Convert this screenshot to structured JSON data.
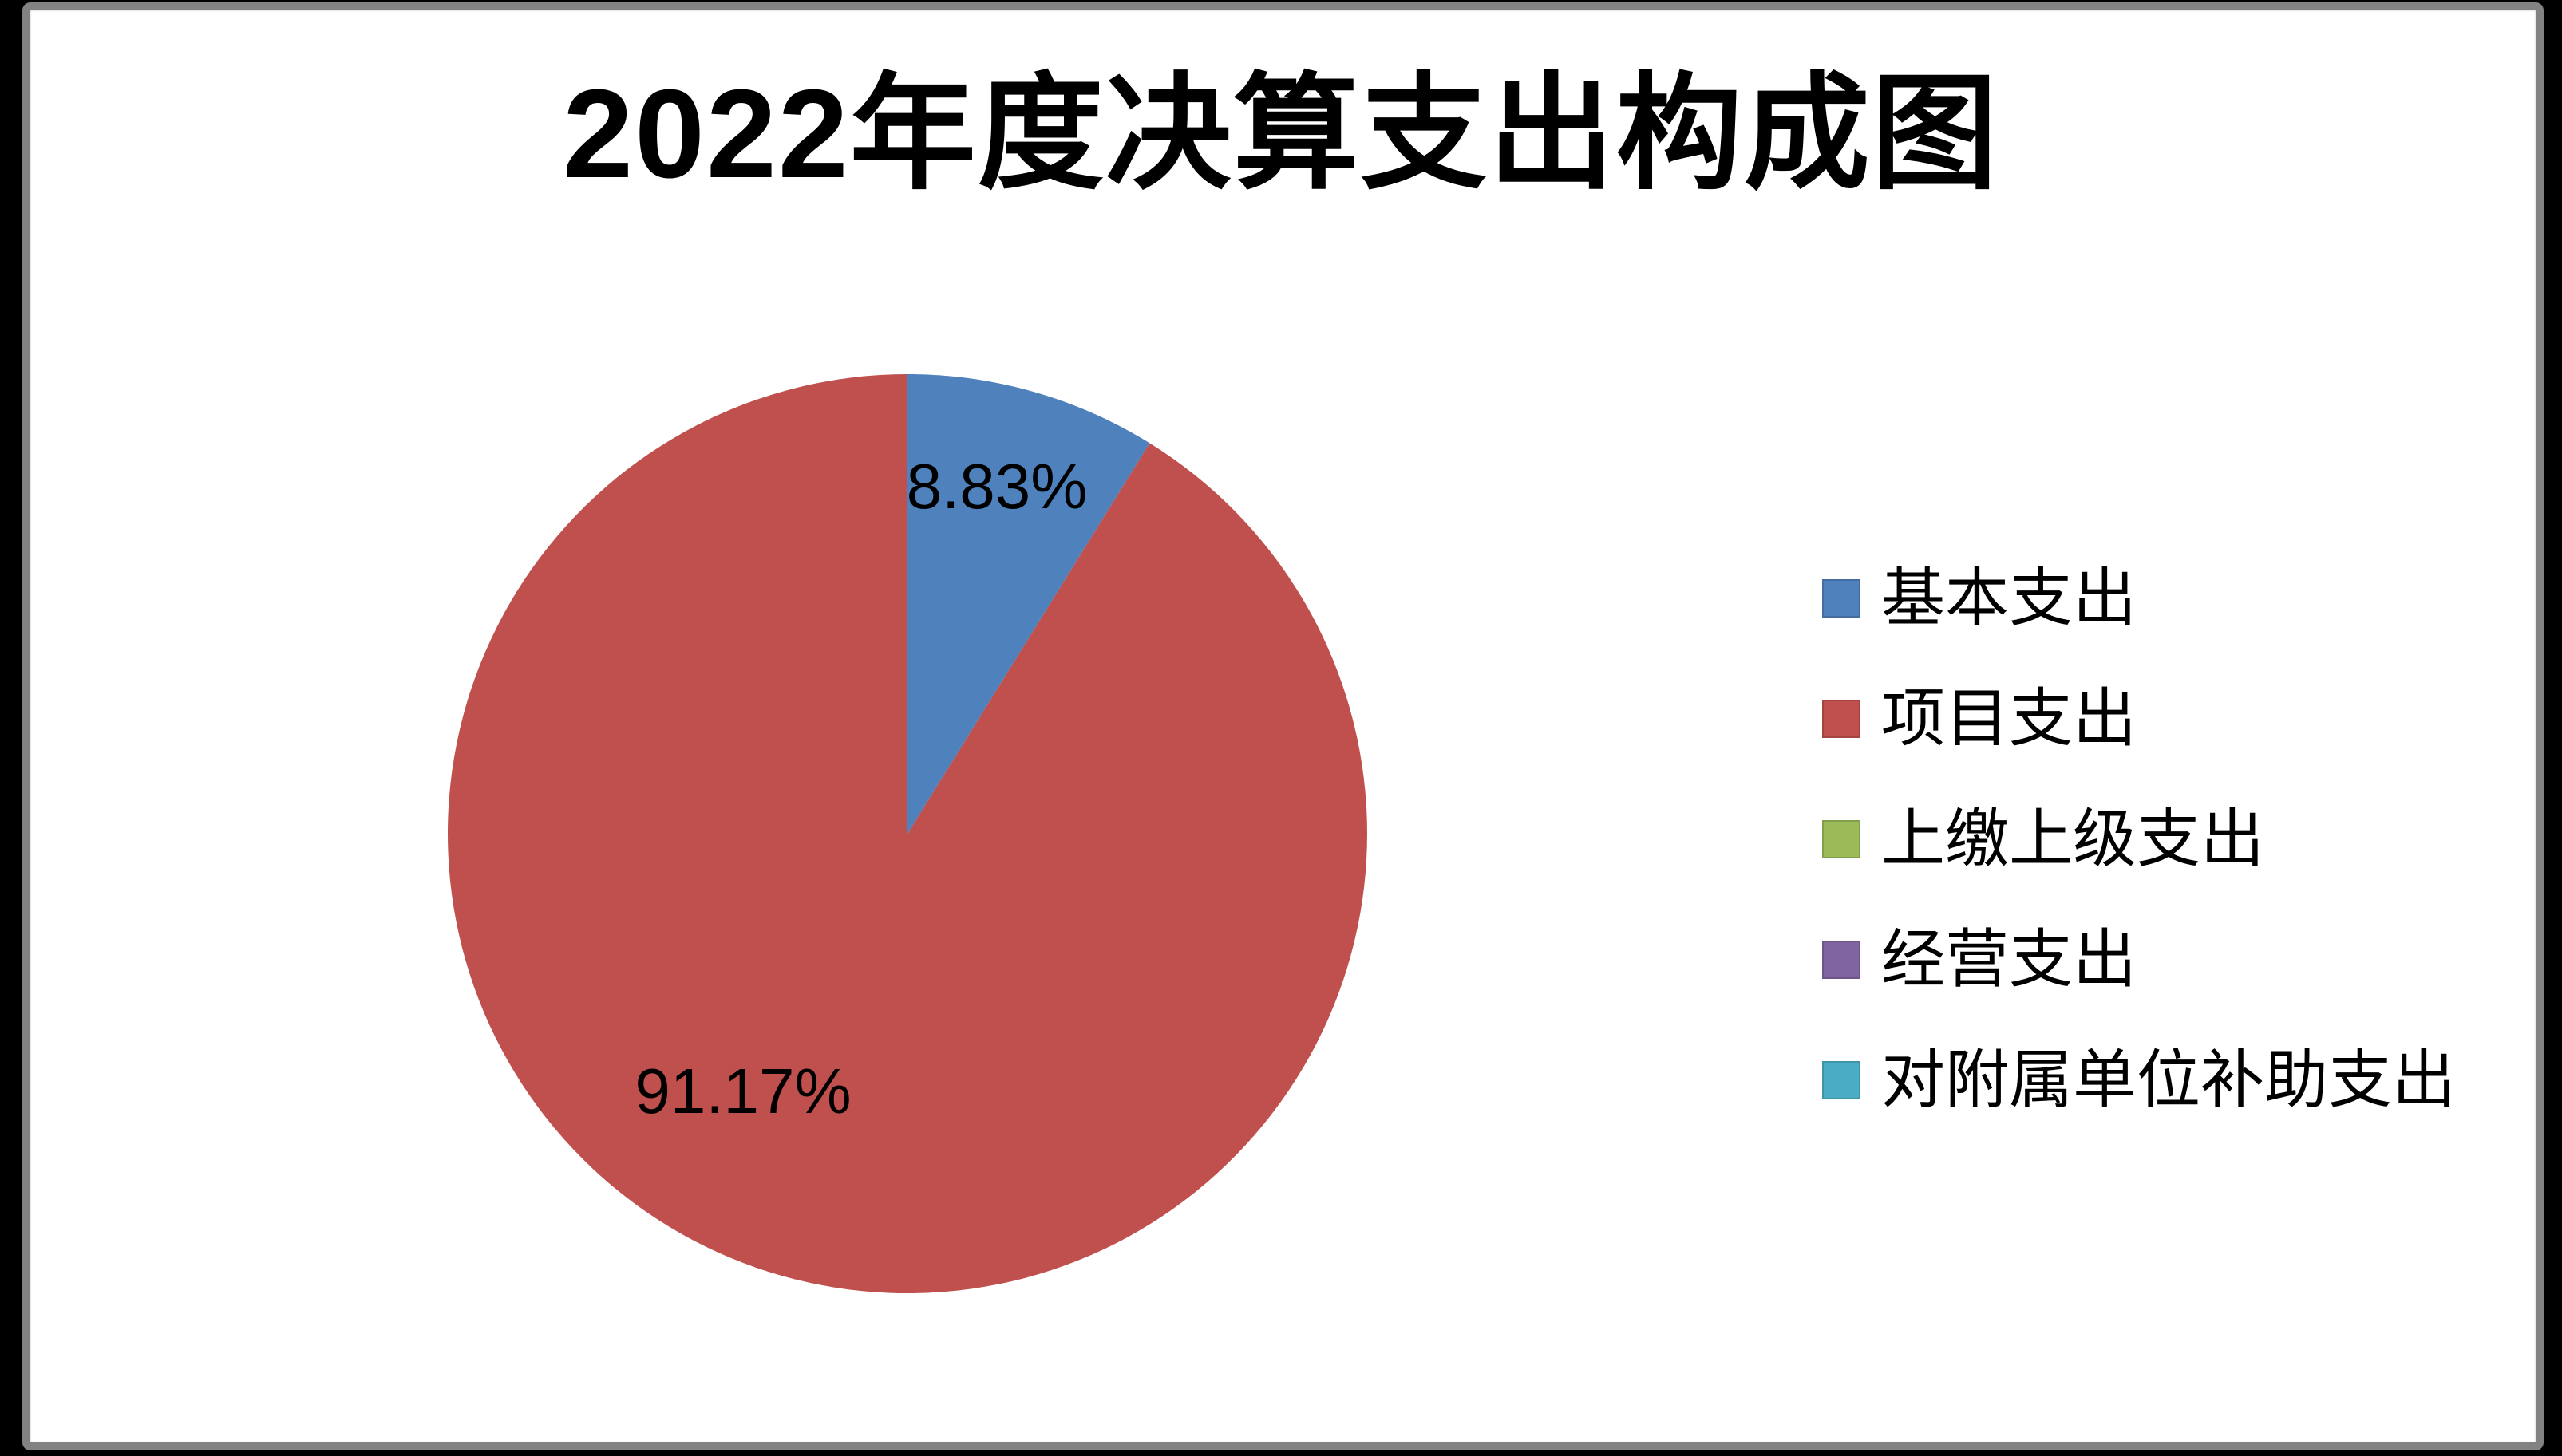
{
  "chart_data": {
    "type": "pie",
    "title": "2022年度决算支出构成图",
    "categories": [
      "基本支出",
      "项目支出",
      "上缴上级支出",
      "经营支出",
      "对附属单位补助支出"
    ],
    "values": [
      8.83,
      91.17,
      0,
      0,
      0
    ],
    "unit": "%",
    "colors": [
      "#4F81BD",
      "#C0504D",
      "#9BBB59",
      "#8064A2",
      "#4BACC6"
    ],
    "data_labels": [
      "8.83%",
      "91.17%"
    ],
    "start_angle_deg": 0,
    "direction": "clockwise",
    "legend_position": "right",
    "grid": false
  },
  "frame": {
    "outer_background": "#000000",
    "panel_background": "#ffffff",
    "border_color": "#828282",
    "title_color": "#000000",
    "label_color": "#000000"
  }
}
